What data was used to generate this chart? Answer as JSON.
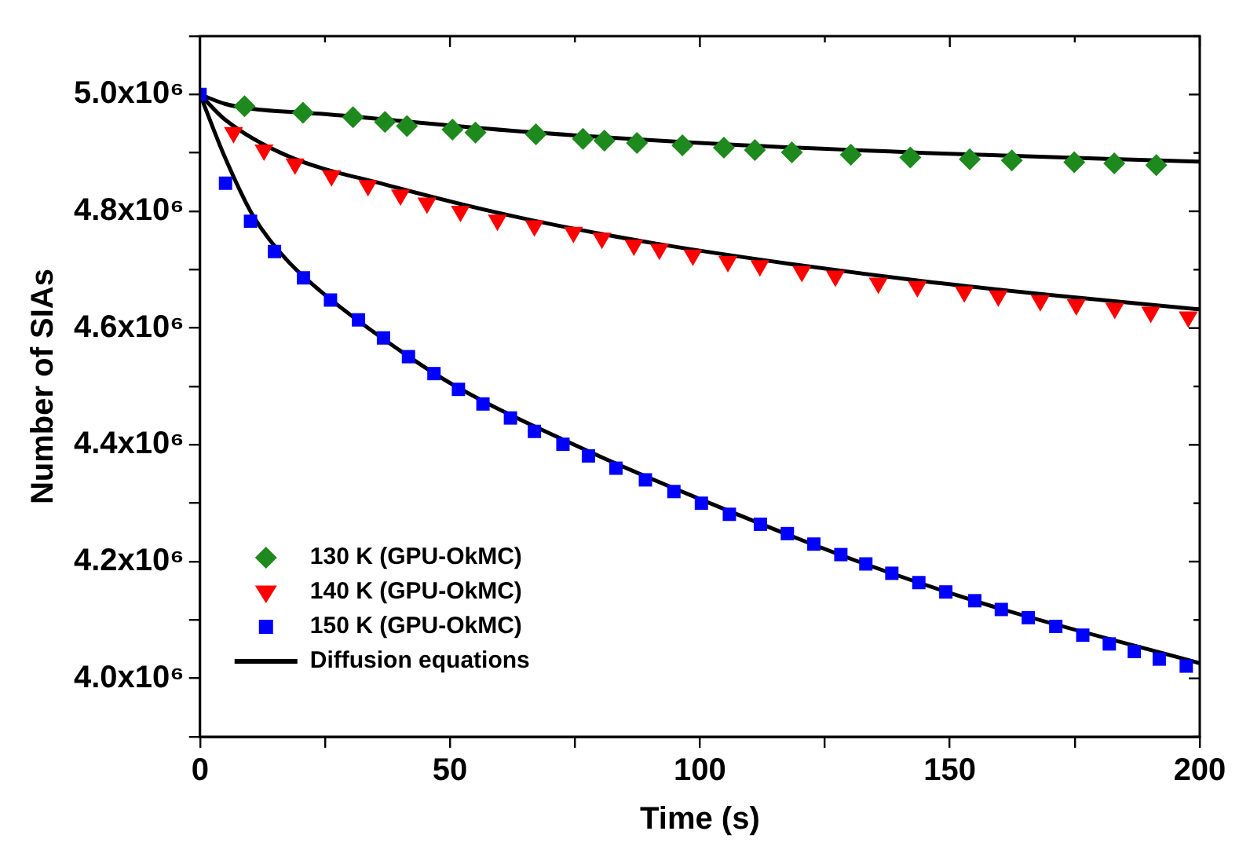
{
  "chart_data": {
    "type": "scatter",
    "xlabel": "Time (s)",
    "ylabel": "Number of SIAs",
    "xlim": [
      0,
      200
    ],
    "ylim": [
      3900000,
      5100000
    ],
    "xticks": [
      0,
      {
        "value": 25,
        "label": null
      },
      50,
      {
        "value": 75,
        "label": null
      },
      100,
      {
        "value": 125,
        "label": null
      },
      150,
      {
        "value": 175,
        "label": null
      },
      200
    ],
    "yticks": [
      {
        "value": 3900000,
        "label": null
      },
      {
        "value": 4000000,
        "label": "4.0x10⁶"
      },
      {
        "value": 4100000,
        "label": null
      },
      {
        "value": 4200000,
        "label": "4.2x10⁶"
      },
      {
        "value": 4300000,
        "label": null
      },
      {
        "value": 4400000,
        "label": "4.4x10⁶"
      },
      {
        "value": 4500000,
        "label": null
      },
      {
        "value": 4600000,
        "label": "4.6x10⁶"
      },
      {
        "value": 4700000,
        "label": null
      },
      {
        "value": 4800000,
        "label": "4.8x10⁶"
      },
      {
        "value": 4900000,
        "label": null
      },
      {
        "value": 5000000,
        "label": "5.0x10⁶"
      },
      {
        "value": 5100000,
        "label": null
      }
    ],
    "grid": false,
    "legend": "bottom left",
    "series": [
      {
        "name": "130 K (GPU-OkMC)",
        "marker": "diamond",
        "color": "#1e8a1e",
        "x": [
          8.9,
          20.6,
          30.6,
          37.0,
          41.4,
          50.5,
          55.1,
          67.2,
          76.6,
          80.9,
          87.4,
          96.5,
          104.8,
          111.0,
          118.4,
          130.2,
          142.1,
          154.0,
          162.4,
          174.9,
          182.9,
          191.3
        ],
        "values": [
          4980000,
          4969000,
          4961000,
          4953000,
          4946000,
          4940000,
          4935000,
          4932000,
          4924000,
          4921000,
          4917000,
          4913000,
          4909000,
          4905000,
          4901000,
          4897000,
          4892000,
          4889000,
          4887000,
          4884000,
          4882000,
          4879000
        ]
      },
      {
        "name": "140 K (GPU-OkMC)",
        "marker": "triangle",
        "color": "#ff0000",
        "x": [
          6.7,
          12.8,
          19.0,
          26.3,
          33.6,
          40.1,
          45.4,
          52.1,
          59.5,
          66.9,
          74.7,
          80.4,
          86.8,
          91.9,
          98.6,
          105.6,
          112.0,
          120.4,
          127.1,
          135.7,
          143.5,
          152.9,
          159.7,
          168.1,
          175.3,
          183.0,
          190.2,
          197.7
        ],
        "values": [
          4935000,
          4905000,
          4881000,
          4861000,
          4844000,
          4828000,
          4814000,
          4800000,
          4785000,
          4775000,
          4764000,
          4754000,
          4742000,
          4735000,
          4725000,
          4714000,
          4707000,
          4697000,
          4689000,
          4677000,
          4671000,
          4662000,
          4655000,
          4647000,
          4640000,
          4634000,
          4627000,
          4619000
        ]
      },
      {
        "name": "150 K (GPU-OkMC)",
        "marker": "square",
        "color": "#0000ff",
        "x": [
          0,
          5.1,
          10.1,
          14.9,
          20.7,
          26.1,
          31.7,
          36.7,
          41.7,
          46.8,
          51.7,
          56.6,
          62.1,
          66.9,
          72.6,
          77.7,
          83.2,
          89.1,
          94.8,
          100.3,
          105.9,
          112.1,
          117.5,
          122.8,
          128.2,
          133.2,
          138.4,
          143.8,
          149.2,
          155.0,
          160.3,
          165.7,
          171.2,
          176.6,
          181.9,
          186.9,
          191.9,
          197.3
        ],
        "values": [
          5000000,
          4848000,
          4783000,
          4731000,
          4686000,
          4648000,
          4614000,
          4583000,
          4551000,
          4522000,
          4495000,
          4470000,
          4446000,
          4423000,
          4401000,
          4381000,
          4360000,
          4340000,
          4320000,
          4300000,
          4281000,
          4264000,
          4248000,
          4230000,
          4212000,
          4196000,
          4180000,
          4164000,
          4148000,
          4133000,
          4118000,
          4104000,
          4089000,
          4074000,
          4059000,
          4046000,
          4033000,
          4021000
        ]
      },
      {
        "name": "Diffusion equations",
        "type": "line",
        "marker": "none",
        "color": "#000000",
        "x": [
          0,
          5,
          10,
          24,
          64,
          104.6,
          145,
          200
        ],
        "values": [
          5000000,
          4984000,
          4976000,
          4967000,
          4937000,
          4915000,
          4900000,
          4885000
        ]
      },
      {
        "type": "line",
        "marker": "none",
        "color": "#000000",
        "x": [
          0,
          5,
          17.2,
          37.4,
          64,
          91,
          118,
          145,
          172,
          200
        ],
        "values": [
          5000000,
          4957000,
          4896000,
          4845000,
          4789000,
          4745000,
          4710000,
          4680000,
          4655000,
          4632000
        ]
      },
      {
        "type": "line",
        "marker": "none",
        "color": "#000000",
        "x": [
          0,
          5,
          10.5,
          17.2,
          24,
          37.4,
          50.8,
          77.7,
          104.6,
          131.4,
          158.3,
          200
        ],
        "values": [
          5000000,
          4892000,
          4794000,
          4718000,
          4664000,
          4577000,
          4502000,
          4389000,
          4291000,
          4201000,
          4124000,
          4026000
        ]
      }
    ]
  }
}
